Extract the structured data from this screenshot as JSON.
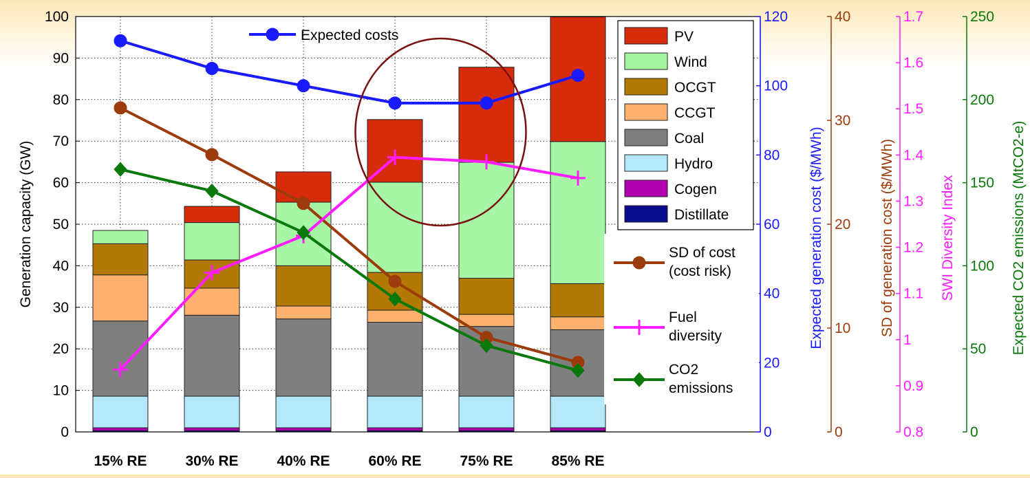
{
  "chart_data": {
    "type": "bar",
    "title": "",
    "categories": [
      "15% RE",
      "30% RE",
      "40% RE",
      "60% RE",
      "75% RE",
      "85% RE"
    ],
    "stacked_bars": [
      {
        "name": "Distillate",
        "color": "#0a0a8c",
        "values": [
          0.3,
          0.3,
          0.3,
          0.3,
          0.3,
          0.3
        ]
      },
      {
        "name": "Cogen",
        "color": "#b000b0",
        "values": [
          0.7,
          0.7,
          0.7,
          0.7,
          0.7,
          0.7
        ]
      },
      {
        "name": "Hydro",
        "color": "#b3e9fb",
        "values": [
          7.6,
          7.6,
          7.6,
          7.6,
          7.6,
          7.6
        ]
      },
      {
        "name": "Coal",
        "color": "#7f7f7f",
        "values": [
          18.1,
          19.5,
          18.6,
          17.8,
          16.8,
          16.0
        ]
      },
      {
        "name": "CCGT",
        "color": "#fdb36f",
        "values": [
          11.1,
          6.5,
          3.1,
          2.9,
          2.9,
          3.1
        ]
      },
      {
        "name": "OCGT",
        "color": "#b27a04",
        "values": [
          7.5,
          6.8,
          9.7,
          9.1,
          8.7,
          8.0
        ]
      },
      {
        "name": "Wind",
        "color": "#a6f6a6",
        "values": [
          3.2,
          9.0,
          15.3,
          21.7,
          27.9,
          34.2
        ]
      },
      {
        "name": "PV",
        "color": "#d62c0c",
        "values": [
          0,
          3.9,
          7.3,
          15.1,
          22.9,
          30.0
        ]
      }
    ],
    "line_series": [
      {
        "name": "Expected costs",
        "axis": "cost",
        "color": "#1a1aff",
        "marker": "circle",
        "values": [
          113,
          105,
          100,
          95,
          95,
          103
        ]
      },
      {
        "name": "SD of cost (cost risk)",
        "axis": "sd",
        "color": "#9c3c0c",
        "marker": "circle",
        "values": [
          31.2,
          26.7,
          22.0,
          14.5,
          9.1,
          6.7
        ]
      },
      {
        "name": "Fuel diversity",
        "axis": "swi",
        "color": "#ff1dff",
        "marker": "plus",
        "values": [
          0.935,
          1.145,
          1.225,
          1.395,
          1.385,
          1.35
        ]
      },
      {
        "name": "CO2 emissions",
        "axis": "co2",
        "color": "#0a780a",
        "marker": "diamond",
        "values": [
          158,
          145,
          120,
          80,
          52,
          37
        ]
      }
    ],
    "axes": {
      "left": {
        "label": "Generation capacity (GW)",
        "min": 0,
        "max": 100,
        "ticks": [
          "0",
          "10",
          "20",
          "30",
          "40",
          "50",
          "60",
          "70",
          "80",
          "90",
          "100"
        ]
      },
      "cost": {
        "label": "Expected generation cost ($/MWh)",
        "color": "#1a1aff",
        "min": 0,
        "max": 120,
        "ticks": [
          "0",
          "20",
          "40",
          "60",
          "80",
          "100",
          "120"
        ]
      },
      "sd": {
        "label": "SD of generation cost ($/MWh)",
        "color": "#9c3c0c",
        "min": 0,
        "max": 40,
        "ticks": [
          "0",
          "10",
          "20",
          "30",
          "40"
        ]
      },
      "swi": {
        "label": "SWI Diversity Index",
        "color": "#ff1dff",
        "min": 0.8,
        "max": 1.7,
        "ticks": [
          "0.8",
          "0.9",
          "1",
          "1.1",
          "1.2",
          "1.3",
          "1.4",
          "1.5",
          "1.6",
          "1.7"
        ]
      },
      "co2": {
        "label": "Expected CO2 emissions (MtCO2-e)",
        "color": "#0a780a",
        "min": 0,
        "max": 250,
        "ticks": [
          "0",
          "50",
          "100",
          "150",
          "200",
          "250"
        ]
      }
    },
    "grid": true,
    "legends": {
      "expected_costs_label": "Expected costs",
      "bar_legend_order": [
        "PV",
        "Wind",
        "OCGT",
        "CCGT",
        "Coal",
        "Hydro",
        "Cogen",
        "Distillate"
      ],
      "sd_label_lines": [
        "SD of cost",
        "(cost risk)"
      ],
      "fuel_label_lines": [
        "Fuel",
        "diversity"
      ],
      "co2_label_lines": [
        "CO2",
        "emissions"
      ]
    },
    "annotation": {
      "shape": "ellipse",
      "color": "#7a0f0f",
      "around_categories": [
        "60% RE",
        "75% RE"
      ]
    }
  }
}
